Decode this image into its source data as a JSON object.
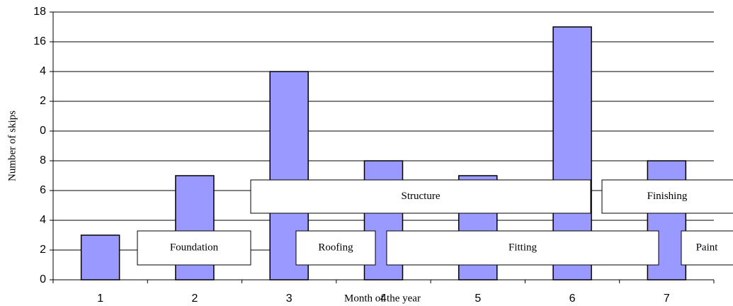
{
  "chart_data": {
    "type": "bar",
    "y_label": "Number of skips",
    "x_label": "Month of the year",
    "categories": [
      "1",
      "2",
      "3",
      "4",
      "5",
      "6",
      "7"
    ],
    "values": [
      3,
      7,
      14,
      8,
      7,
      17,
      8
    ],
    "color": "#9999ff",
    "ylim": [
      0,
      18
    ],
    "yticks": [
      0,
      2,
      4,
      6,
      8,
      {
        "value": 10,
        "label": "0"
      },
      {
        "value": 12,
        "label": "2"
      },
      {
        "value": 14,
        "label": "4"
      },
      16,
      18
    ],
    "grid": true,
    "annotations": [
      "Foundation",
      "Structure",
      "Roofing",
      "Fitting",
      "Finishing",
      "Paint"
    ]
  }
}
